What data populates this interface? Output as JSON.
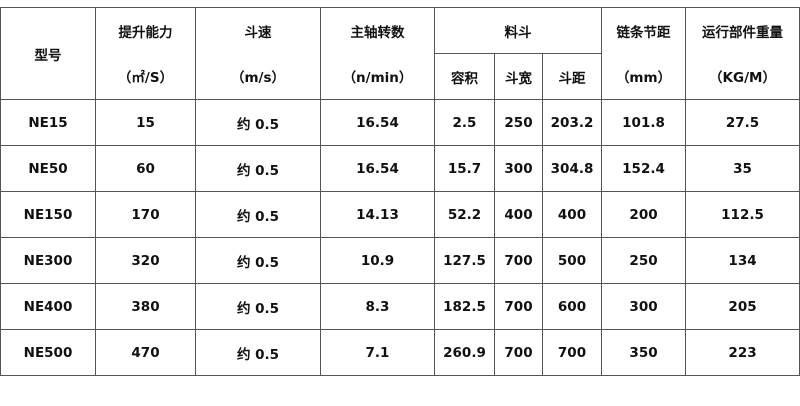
{
  "headers": {
    "model": "型号",
    "capacity": "提升能力",
    "capacity_unit": "（㎡/S）",
    "speed": "斗速",
    "speed_unit": "（m/s）",
    "rpm": "主轴转数",
    "rpm_unit": "（n/min）",
    "bucket": "料斗",
    "bucket_volume": "容积",
    "bucket_width": "斗宽",
    "bucket_pitch": "斗距",
    "chain_pitch": "链条节距",
    "chain_pitch_unit": "（mm）",
    "weight": "运行部件重量",
    "weight_unit": "（KG/M）"
  },
  "rows": [
    [
      "NE15",
      "15",
      "约 0.5",
      "16.54",
      "2.5",
      "250",
      "203.2",
      "101.8",
      "27.5"
    ],
    [
      "NE50",
      "60",
      "约 0.5",
      "16.54",
      "15.7",
      "300",
      "304.8",
      "152.4",
      "35"
    ],
    [
      "NE150",
      "170",
      "约 0.5",
      "14.13",
      "52.2",
      "400",
      "400",
      "200",
      "112.5"
    ],
    [
      "NE300",
      "320",
      "约 0.5",
      "10.9",
      "127.5",
      "700",
      "500",
      "250",
      "134"
    ],
    [
      "NE400",
      "380",
      "约 0.5",
      "8.3",
      "182.5",
      "700",
      "600",
      "300",
      "205"
    ],
    [
      "NE500",
      "470",
      "约 0.5",
      "7.1",
      "260.9",
      "700",
      "700",
      "350",
      "223"
    ]
  ]
}
